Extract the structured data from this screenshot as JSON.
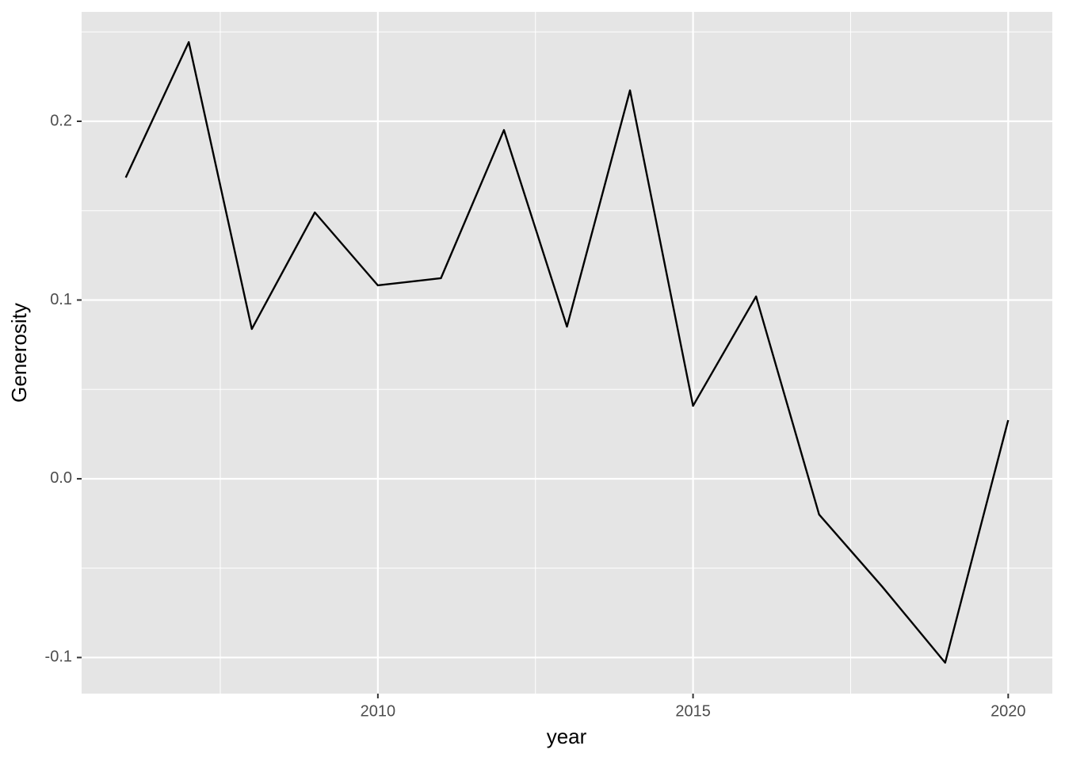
{
  "chart_data": {
    "type": "line",
    "x_label": "year",
    "y_label": "Generosity",
    "x": [
      2006,
      2007,
      2008,
      2009,
      2010,
      2011,
      2012,
      2013,
      2014,
      2015,
      2016,
      2017,
      2018,
      2019,
      2020
    ],
    "series": [
      {
        "color": "#000000",
        "values": [
          0.1685,
          0.2443,
          0.0838,
          0.149,
          0.1082,
          0.1122,
          0.1951,
          0.0851,
          0.2173,
          0.0408,
          0.102,
          -0.02,
          -0.0603,
          -0.1029,
          0.0328
        ]
      }
    ],
    "xlim": [
      2005.3,
      2020.7
    ],
    "xticks": [
      2010,
      2015,
      2020
    ],
    "ylim": [
      -0.1202,
      0.2612
    ],
    "yticks": [
      -0.1,
      {
        "value": 0,
        "label": "0.0"
      },
      0.1,
      0.2
    ],
    "grid": true,
    "panel_color": "#e5e5e5"
  }
}
